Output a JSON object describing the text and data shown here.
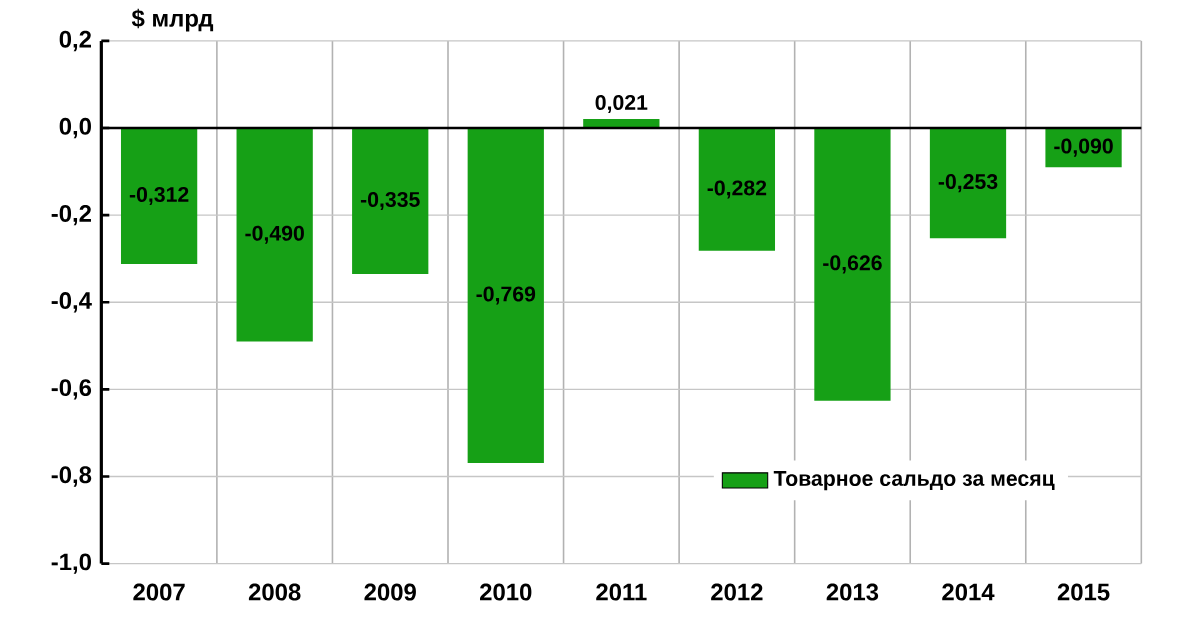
{
  "chart_data": {
    "type": "bar",
    "ylabel": "$ млрд",
    "categories": [
      "2007",
      "2008",
      "2009",
      "2010",
      "2011",
      "2012",
      "2013",
      "2014",
      "2015"
    ],
    "series": [
      {
        "name": "Товарное сальдо за месяц",
        "color": "#16a016",
        "values": [
          -0.312,
          -0.49,
          -0.335,
          -0.769,
          0.021,
          -0.282,
          -0.626,
          -0.253,
          -0.09
        ],
        "value_labels": [
          "-0,312",
          "-0,490",
          "-0,335",
          "-0,769",
          "0,021",
          "-0,282",
          "-0,626",
          "-0,253",
          "-0,090"
        ]
      }
    ],
    "ylim": [
      -1.0,
      0.2
    ],
    "yticks": [
      {
        "value": -1.0,
        "label": "-1,0"
      },
      {
        "value": -0.8,
        "label": "-0,8"
      },
      {
        "value": -0.6,
        "label": "-0,6"
      },
      {
        "value": -0.4,
        "label": "-0,4"
      },
      {
        "value": -0.2,
        "label": "-0,2"
      },
      {
        "value": 0.0,
        "label": "0,0"
      },
      {
        "value": 0.2,
        "label": "0,2"
      }
    ],
    "grid": true,
    "legend": "bottom right"
  }
}
